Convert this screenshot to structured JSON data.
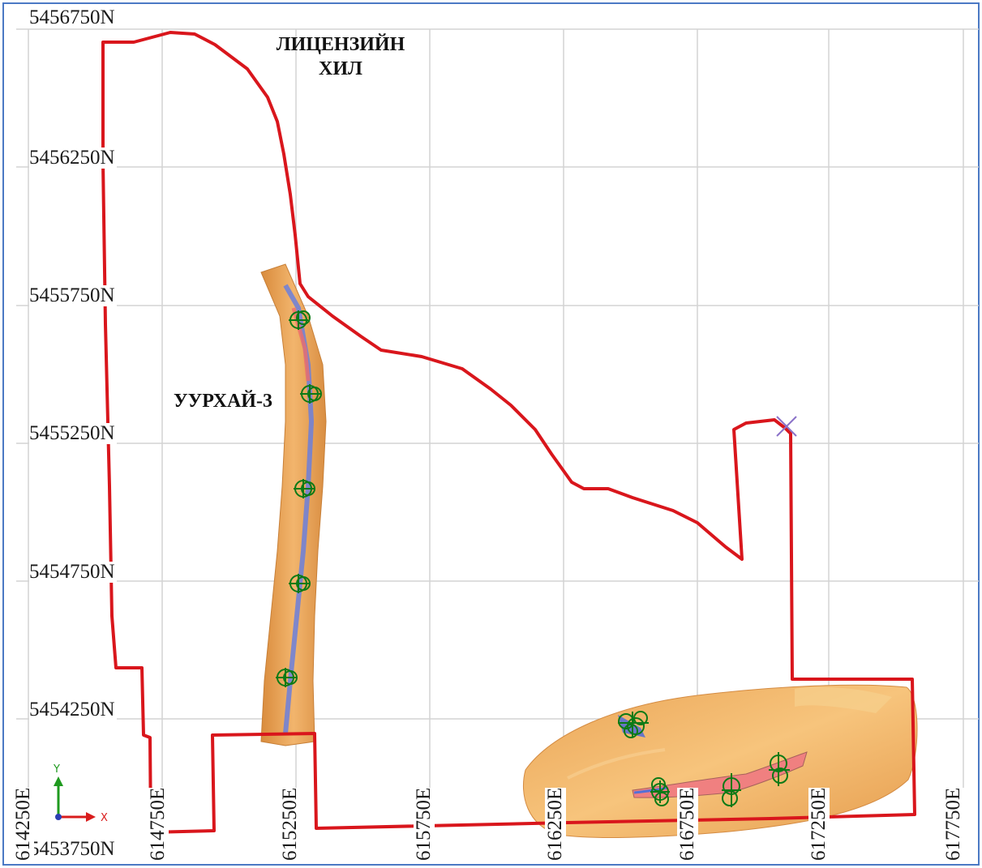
{
  "northings": [
    "5456750N",
    "5456250N",
    "5455750N",
    "5455250N",
    "5454750N",
    "5454250N",
    "5453750N"
  ],
  "eastings": [
    "614250E",
    "614750E",
    "615250E",
    "615750E",
    "616250E",
    "616750E",
    "617250E",
    "617750E"
  ],
  "places": {
    "license_area": [
      "ЛИЦЕНЗИЙН",
      "ХИЛ"
    ],
    "mine": "УУРХАЙ-3"
  },
  "axis_triad": {
    "y_label": "Y",
    "x_label": "X"
  },
  "colors": {
    "boundary": "#d9161c",
    "ore_body": "#e8a45a",
    "ore_highlight": "#f3c07a",
    "drill_marker": "#0c7a16",
    "centerline": "#5570d6",
    "pink_zone": "#ee6b6b",
    "grid": "#d4d4d4"
  }
}
